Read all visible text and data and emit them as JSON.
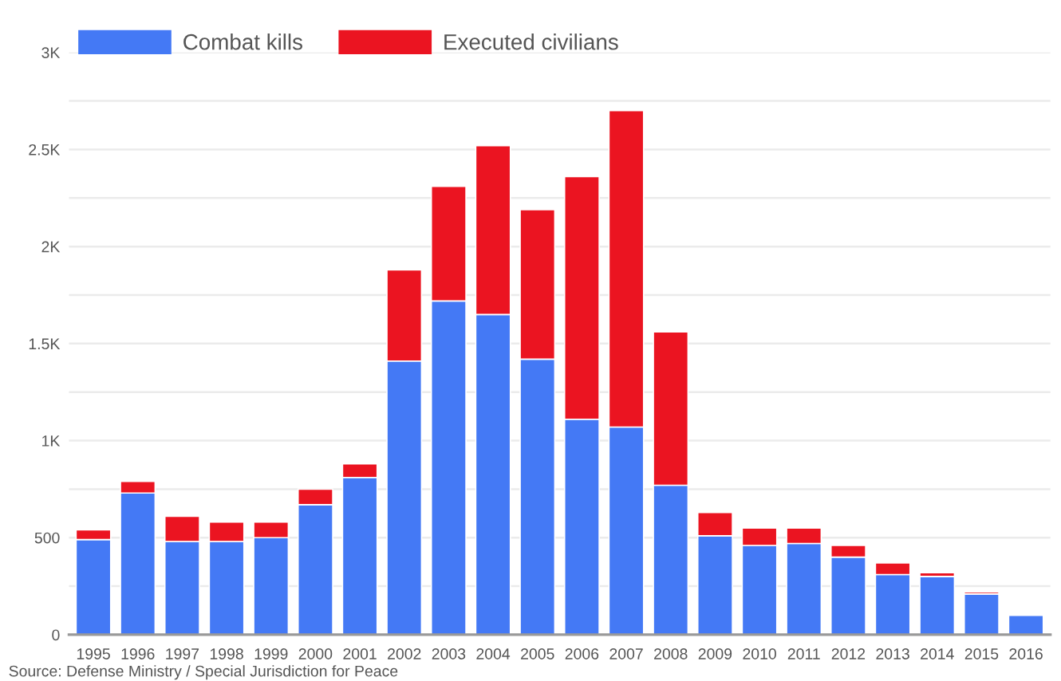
{
  "chart_data": {
    "type": "bar",
    "stacked": true,
    "categories": [
      "1995",
      "1996",
      "1997",
      "1998",
      "1999",
      "2000",
      "2001",
      "2002",
      "2003",
      "2004",
      "2005",
      "2006",
      "2007",
      "2008",
      "2009",
      "2010",
      "2011",
      "2012",
      "2013",
      "2014",
      "2015",
      "2016"
    ],
    "series": [
      {
        "name": "Combat kills",
        "color": "#4479f5",
        "values": [
          490,
          730,
          480,
          480,
          500,
          670,
          810,
          1410,
          1720,
          1650,
          1420,
          1110,
          1070,
          770,
          510,
          460,
          470,
          400,
          310,
          300,
          210,
          100
        ]
      },
      {
        "name": "Executed civilians",
        "color": "#eb1421",
        "values": [
          50,
          60,
          130,
          100,
          80,
          80,
          70,
          470,
          590,
          870,
          770,
          1250,
          1630,
          790,
          120,
          90,
          80,
          60,
          60,
          20,
          10,
          null
        ]
      }
    ],
    "ylim": [
      0,
      3000
    ],
    "yticks": [
      0,
      {
        "value": 250,
        "label": null
      },
      500,
      {
        "value": 750,
        "label": null
      },
      {
        "value": 1000,
        "label": "1K"
      },
      {
        "value": 1250,
        "label": null
      },
      {
        "value": 1500,
        "label": "1.5K"
      },
      {
        "value": 1750,
        "label": null
      },
      {
        "value": 2000,
        "label": "2K"
      },
      {
        "value": 2250,
        "label": null
      },
      {
        "value": 2500,
        "label": "2.5K"
      },
      {
        "value": 2750,
        "label": null
      },
      {
        "value": 3000,
        "label": "3K"
      }
    ],
    "grid": "y",
    "legend": "top left",
    "annotations": [
      "Source: Defense Ministry / Special Jurisdiction for Peace"
    ]
  }
}
